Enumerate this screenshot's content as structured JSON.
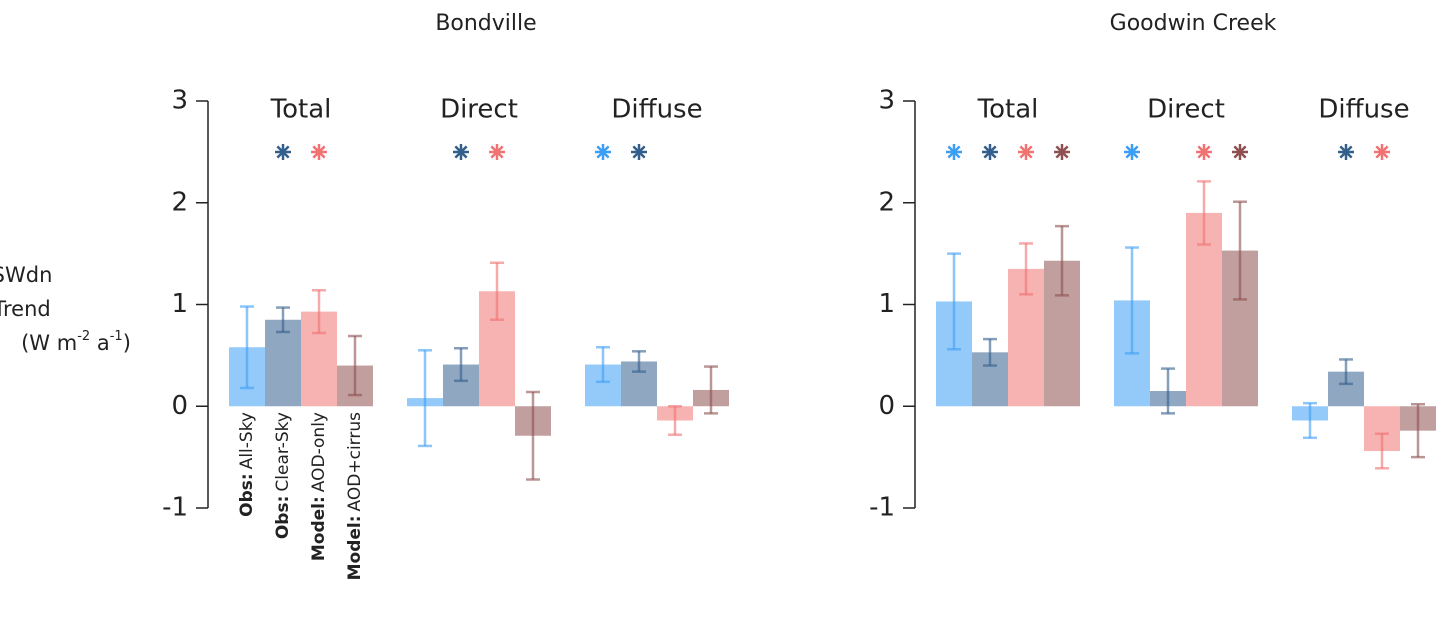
{
  "chart_data": [
    {
      "type": "bar",
      "title": "Bondville",
      "ylabel": {
        "lines": [
          "SWdn",
          "Trend"
        ],
        "unit": [
          "(W m",
          "-2",
          " a",
          "-1",
          ")"
        ]
      },
      "categories": [
        "Total",
        "Direct",
        "Diffuse"
      ],
      "ylim": [
        -1,
        3
      ],
      "yticks": [
        -1,
        0,
        1,
        2,
        3
      ],
      "legend": true,
      "series": [
        {
          "source": "Obs:",
          "name": "All-Sky",
          "color": "#3d9ef5",
          "values": [
            0.58,
            0.08,
            0.41
          ],
          "errors": [
            0.4,
            0.47,
            0.17
          ],
          "significant": [
            false,
            false,
            true
          ]
        },
        {
          "source": "Obs:",
          "name": "Clear-Sky",
          "color": "#335f8c",
          "values": [
            0.85,
            0.41,
            0.44
          ],
          "errors": [
            0.12,
            0.16,
            0.1
          ],
          "significant": [
            true,
            true,
            true
          ]
        },
        {
          "source": "Model:",
          "name": "AOD-only",
          "color": "#f07272",
          "values": [
            0.93,
            1.13,
            -0.14
          ],
          "errors": [
            0.21,
            0.28,
            0.14
          ],
          "significant": [
            true,
            true,
            false
          ]
        },
        {
          "source": "Model:",
          "name": "AOD+cirrus",
          "color": "#8e5050",
          "values": [
            0.4,
            -0.29,
            0.16
          ],
          "errors": [
            0.29,
            0.43,
            0.23
          ],
          "significant": [
            false,
            false,
            false
          ]
        }
      ]
    },
    {
      "type": "bar",
      "title": "Goodwin Creek",
      "categories": [
        "Total",
        "Direct",
        "Diffuse"
      ],
      "ylim": [
        -1,
        3
      ],
      "yticks": [
        -1,
        0,
        1,
        2,
        3
      ],
      "legend": false,
      "series": [
        {
          "source": "Obs:",
          "name": "All-Sky",
          "color": "#3d9ef5",
          "values": [
            1.03,
            1.04,
            -0.14
          ],
          "errors": [
            0.47,
            0.52,
            0.17
          ],
          "significant": [
            true,
            true,
            false
          ]
        },
        {
          "source": "Obs:",
          "name": "Clear-Sky",
          "color": "#335f8c",
          "values": [
            0.53,
            0.15,
            0.34
          ],
          "errors": [
            0.13,
            0.22,
            0.12
          ],
          "significant": [
            true,
            false,
            true
          ]
        },
        {
          "source": "Model:",
          "name": "AOD-only",
          "color": "#f07272",
          "values": [
            1.35,
            1.9,
            -0.44
          ],
          "errors": [
            0.25,
            0.31,
            0.17
          ],
          "significant": [
            true,
            true,
            true
          ]
        },
        {
          "source": "Model:",
          "name": "AOD+cirrus",
          "color": "#8e5050",
          "values": [
            1.43,
            1.53,
            -0.24
          ],
          "errors": [
            0.34,
            0.48,
            0.26
          ],
          "significant": [
            true,
            true,
            false
          ]
        }
      ]
    }
  ]
}
